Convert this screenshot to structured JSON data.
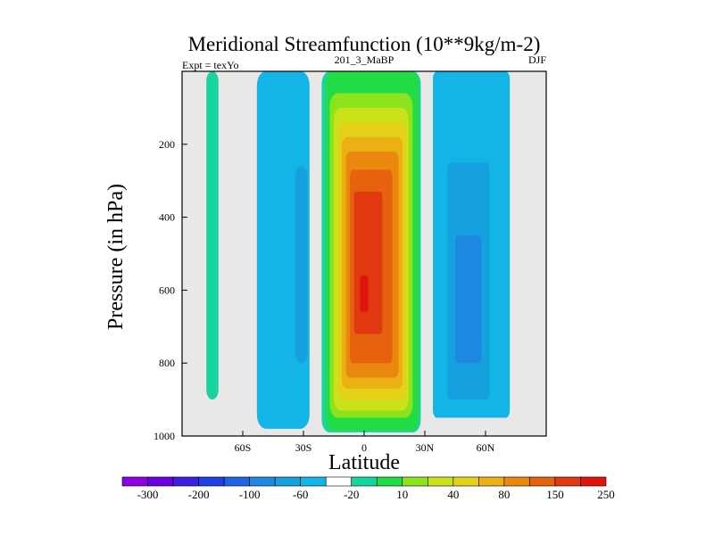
{
  "chart_data": {
    "type": "heatmap",
    "subtype": "filled-contour",
    "title": "Meridional Streamfunction (10**9kg/m-2)",
    "subtitle_left": "Expt = texYo",
    "subtitle_center": "201_3_MaBP",
    "subtitle_right": "DJF",
    "xlabel": "Latitude",
    "ylabel": "Pressure (in hPa)",
    "xlim": [
      -90,
      90
    ],
    "ylim": [
      1000,
      0
    ],
    "x_ticks": [
      {
        "value": -60,
        "label": "60S"
      },
      {
        "value": -30,
        "label": "30S"
      },
      {
        "value": 0,
        "label": "0"
      },
      {
        "value": 30,
        "label": "30N"
      },
      {
        "value": 60,
        "label": "60N"
      }
    ],
    "y_ticks": [
      {
        "value": 200,
        "label": "200"
      },
      {
        "value": 400,
        "label": "400"
      },
      {
        "value": 600,
        "label": "600"
      },
      {
        "value": 800,
        "label": "800"
      },
      {
        "value": 1000,
        "label": "1000"
      }
    ],
    "background_color": "#e8e8e8",
    "colorbar": {
      "colors": [
        "#8f00e0",
        "#6a00e0",
        "#3d1fe0",
        "#1f3fe0",
        "#1f64e0",
        "#1f88e0",
        "#15a0e0",
        "#12b5e6",
        "#ffffff",
        "#1ad49e",
        "#22dc45",
        "#8ce21d",
        "#c9e21a",
        "#e4d21a",
        "#ecb015",
        "#ea8810",
        "#e6620f",
        "#e0380f",
        "#e0140f"
      ],
      "labels": [
        "-300",
        "-200",
        "-100",
        "-60",
        "-20",
        "10",
        "40",
        "80",
        "150",
        "250"
      ]
    },
    "regions": [
      {
        "name": "sh-high-lat-cell",
        "color": "#1ad49e",
        "lat": [
          -78,
          -72
        ],
        "p_top": 0,
        "p_bottom": 900
      },
      {
        "name": "sh-mid-lat-outer",
        "color": "#12b5e6",
        "lat": [
          -53,
          -27
        ],
        "p_top": 0,
        "p_bottom": 980
      },
      {
        "name": "sh-mid-lat-core",
        "color": "#15a0e0",
        "lat": [
          -34,
          -28
        ],
        "p_top": 260,
        "p_bottom": 800
      },
      {
        "name": "hadley-10",
        "color": "#1ad49e",
        "lat": [
          -21,
          28
        ],
        "p_top": 0,
        "p_bottom": 990
      },
      {
        "name": "hadley-40",
        "color": "#22dc45",
        "lat": [
          -19,
          27
        ],
        "p_top": 0,
        "p_bottom": 985
      },
      {
        "name": "hadley-60",
        "color": "#8ce21d",
        "lat": [
          -17,
          24
        ],
        "p_top": 60,
        "p_bottom": 950
      },
      {
        "name": "hadley-80",
        "color": "#c9e21a",
        "lat": [
          -15,
          22
        ],
        "p_top": 100,
        "p_bottom": 930
      },
      {
        "name": "hadley-100",
        "color": "#e4d21a",
        "lat": [
          -13,
          21
        ],
        "p_top": 140,
        "p_bottom": 900
      },
      {
        "name": "hadley-150",
        "color": "#ecb015",
        "lat": [
          -11,
          19
        ],
        "p_top": 180,
        "p_bottom": 870
      },
      {
        "name": "hadley-200",
        "color": "#ea8810",
        "lat": [
          -9,
          17
        ],
        "p_top": 220,
        "p_bottom": 840
      },
      {
        "name": "hadley-250",
        "color": "#e6620f",
        "lat": [
          -7,
          14
        ],
        "p_top": 270,
        "p_bottom": 800
      },
      {
        "name": "hadley-300",
        "color": "#e0380f",
        "lat": [
          -5,
          9
        ],
        "p_top": 330,
        "p_bottom": 720
      },
      {
        "name": "hadley-core",
        "color": "#e0140f",
        "lat": [
          -2,
          2
        ],
        "p_top": 560,
        "p_bottom": 660
      },
      {
        "name": "nh-ferrel-outer",
        "color": "#12b5e6",
        "lat": [
          34,
          72
        ],
        "p_top": 0,
        "p_bottom": 950
      },
      {
        "name": "nh-ferrel-core",
        "color": "#15a0e0",
        "lat": [
          41,
          62
        ],
        "p_top": 250,
        "p_bottom": 900
      },
      {
        "name": "nh-ferrel-inner",
        "color": "#1f88e0",
        "lat": [
          45,
          58
        ],
        "p_top": 450,
        "p_bottom": 800
      }
    ]
  }
}
